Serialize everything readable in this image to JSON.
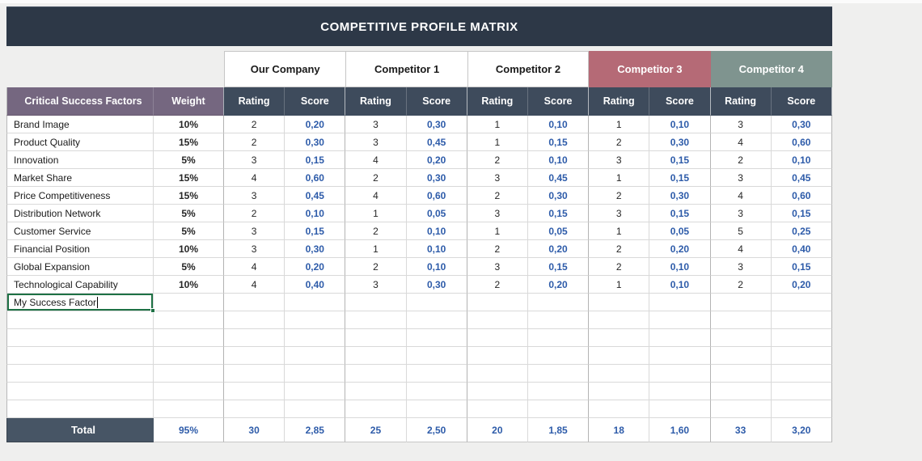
{
  "title": "COMPETITIVE PROFILE MATRIX",
  "colors": {
    "title_bar": "#2d3847",
    "header_dark": "#3e4b5c",
    "header_purple": "#756780",
    "total_bg": "#475565",
    "score_text": "#2d5ba9",
    "grid_line": "#d9d9d9",
    "section_line": "#b3b3b3",
    "selection_green": "#1e7145",
    "background": "#efefee"
  },
  "companies": [
    {
      "name": "Our Company",
      "bg": "#ffffff",
      "fg": "#1a1a1a"
    },
    {
      "name": "Competitor 1",
      "bg": "#ffffff",
      "fg": "#1a1a1a"
    },
    {
      "name": "Competitor 2",
      "bg": "#ffffff",
      "fg": "#1a1a1a"
    },
    {
      "name": "Competitor 3",
      "bg": "#b56a76",
      "fg": "#ffffff"
    },
    {
      "name": "Competitor 4",
      "bg": "#7f948f",
      "fg": "#ffffff"
    }
  ],
  "column_headers": {
    "factors": "Critical Success Factors",
    "weight": "Weight",
    "rating": "Rating",
    "score": "Score"
  },
  "rows": [
    {
      "factor": "Brand Image",
      "weight": "10%",
      "cells": [
        [
          "2",
          "0,20"
        ],
        [
          "3",
          "0,30"
        ],
        [
          "1",
          "0,10"
        ],
        [
          "1",
          "0,10"
        ],
        [
          "3",
          "0,30"
        ]
      ]
    },
    {
      "factor": "Product Quality",
      "weight": "15%",
      "cells": [
        [
          "2",
          "0,30"
        ],
        [
          "3",
          "0,45"
        ],
        [
          "1",
          "0,15"
        ],
        [
          "2",
          "0,30"
        ],
        [
          "4",
          "0,60"
        ]
      ]
    },
    {
      "factor": "Innovation",
      "weight": "5%",
      "cells": [
        [
          "3",
          "0,15"
        ],
        [
          "4",
          "0,20"
        ],
        [
          "2",
          "0,10"
        ],
        [
          "3",
          "0,15"
        ],
        [
          "2",
          "0,10"
        ]
      ]
    },
    {
      "factor": "Market Share",
      "weight": "15%",
      "cells": [
        [
          "4",
          "0,60"
        ],
        [
          "2",
          "0,30"
        ],
        [
          "3",
          "0,45"
        ],
        [
          "1",
          "0,15"
        ],
        [
          "3",
          "0,45"
        ]
      ]
    },
    {
      "factor": "Price Competitiveness",
      "weight": "15%",
      "cells": [
        [
          "3",
          "0,45"
        ],
        [
          "4",
          "0,60"
        ],
        [
          "2",
          "0,30"
        ],
        [
          "2",
          "0,30"
        ],
        [
          "4",
          "0,60"
        ]
      ]
    },
    {
      "factor": "Distribution Network",
      "weight": "5%",
      "cells": [
        [
          "2",
          "0,10"
        ],
        [
          "1",
          "0,05"
        ],
        [
          "3",
          "0,15"
        ],
        [
          "3",
          "0,15"
        ],
        [
          "3",
          "0,15"
        ]
      ]
    },
    {
      "factor": "Customer Service",
      "weight": "5%",
      "cells": [
        [
          "3",
          "0,15"
        ],
        [
          "2",
          "0,10"
        ],
        [
          "1",
          "0,05"
        ],
        [
          "1",
          "0,05"
        ],
        [
          "5",
          "0,25"
        ]
      ]
    },
    {
      "factor": "Financial Position",
      "weight": "10%",
      "cells": [
        [
          "3",
          "0,30"
        ],
        [
          "1",
          "0,10"
        ],
        [
          "2",
          "0,20"
        ],
        [
          "2",
          "0,20"
        ],
        [
          "4",
          "0,40"
        ]
      ]
    },
    {
      "factor": "Global Expansion",
      "weight": "5%",
      "cells": [
        [
          "4",
          "0,20"
        ],
        [
          "2",
          "0,10"
        ],
        [
          "3",
          "0,15"
        ],
        [
          "2",
          "0,10"
        ],
        [
          "3",
          "0,15"
        ]
      ]
    },
    {
      "factor": "Technological Capability",
      "weight": "10%",
      "cells": [
        [
          "4",
          "0,40"
        ],
        [
          "3",
          "0,30"
        ],
        [
          "2",
          "0,20"
        ],
        [
          "1",
          "0,10"
        ],
        [
          "2",
          "0,20"
        ]
      ]
    }
  ],
  "editing_row": {
    "factor": "My Success Factor"
  },
  "empty_row_count": 6,
  "total": {
    "label": "Total",
    "weight": "95%",
    "cells": [
      [
        "30",
        "2,85"
      ],
      [
        "25",
        "2,50"
      ],
      [
        "20",
        "1,85"
      ],
      [
        "18",
        "1,60"
      ],
      [
        "33",
        "3,20"
      ]
    ]
  }
}
